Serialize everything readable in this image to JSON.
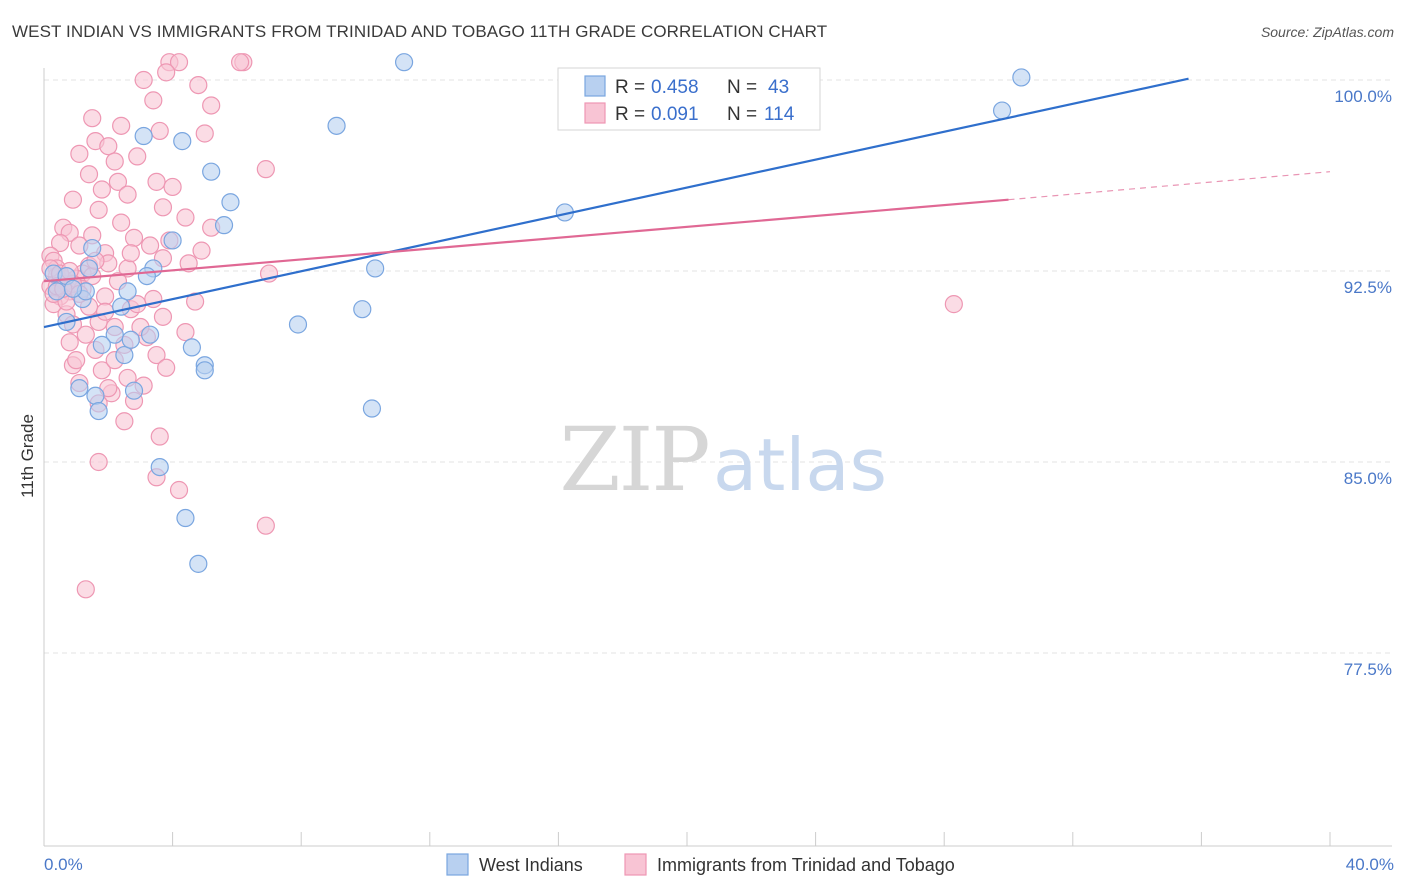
{
  "title": "WEST INDIAN VS IMMIGRANTS FROM TRINIDAD AND TOBAGO 11TH GRADE CORRELATION CHART",
  "source": "Source: ZipAtlas.com",
  "watermark": {
    "zip": "ZIP",
    "atlas": "atlas"
  },
  "colors": {
    "blue_fill": "#b8d0f0",
    "blue_stroke": "#7aa6e0",
    "blue_line": "#2f6fcc",
    "pink_fill": "#f8c4d4",
    "pink_stroke": "#ee97b3",
    "pink_line": "#e06894",
    "grid": "#e3e3e3",
    "label": "#4a78c8"
  },
  "legend": {
    "rows": [
      {
        "r_label": "R = ",
        "r_value": "0.458",
        "n_label": "N = ",
        "n_value": "43",
        "series": "blue"
      },
      {
        "r_label": "R = ",
        "r_value": "0.091",
        "n_label": "N = ",
        "n_value": "114",
        "series": "pink"
      }
    ]
  },
  "chart_data": {
    "type": "scatter",
    "title": "WEST INDIAN VS IMMIGRANTS FROM TRINIDAD AND TOBAGO 11TH GRADE CORRELATION CHART",
    "xlabel": "",
    "ylabel": "11th Grade",
    "xlim": [
      0,
      40
    ],
    "ylim": [
      70.0,
      101.5
    ],
    "x_tick_labels": {
      "left": "0.0%",
      "right": "40.0%"
    },
    "y_ticks": [
      {
        "value": 100.0,
        "label": "100.0%"
      },
      {
        "value": 92.5,
        "label": "92.5%"
      },
      {
        "value": 85.0,
        "label": "85.0%"
      },
      {
        "value": 77.5,
        "label": "77.5%"
      }
    ],
    "series": [
      {
        "name": "West Indians",
        "color": "blue",
        "trend": {
          "x0": 0,
          "y0": 90.3,
          "x1": 35.6,
          "y1": 100.05,
          "dashed_to": null
        },
        "points": [
          [
            11.2,
            100.7
          ],
          [
            30.4,
            100.1
          ],
          [
            29.8,
            98.8
          ],
          [
            9.1,
            98.2
          ],
          [
            3.1,
            97.8
          ],
          [
            4.3,
            97.6
          ],
          [
            5.2,
            96.4
          ],
          [
            5.8,
            95.2
          ],
          [
            16.2,
            94.8
          ],
          [
            5.6,
            94.3
          ],
          [
            4.0,
            93.7
          ],
          [
            1.5,
            93.4
          ],
          [
            1.4,
            92.6
          ],
          [
            3.4,
            92.6
          ],
          [
            0.3,
            92.4
          ],
          [
            0.7,
            92.3
          ],
          [
            10.3,
            92.6
          ],
          [
            2.6,
            91.7
          ],
          [
            1.2,
            91.4
          ],
          [
            0.4,
            91.7
          ],
          [
            2.4,
            91.1
          ],
          [
            9.9,
            91.0
          ],
          [
            7.9,
            90.4
          ],
          [
            0.7,
            90.5
          ],
          [
            2.2,
            90.0
          ],
          [
            3.3,
            90.0
          ],
          [
            1.8,
            89.6
          ],
          [
            4.6,
            89.5
          ],
          [
            2.5,
            89.2
          ],
          [
            5.0,
            88.8
          ],
          [
            5.0,
            88.6
          ],
          [
            1.1,
            87.9
          ],
          [
            2.8,
            87.8
          ],
          [
            1.6,
            87.6
          ],
          [
            10.2,
            87.1
          ],
          [
            1.7,
            87.0
          ],
          [
            3.6,
            84.8
          ],
          [
            4.4,
            82.8
          ],
          [
            4.8,
            81.0
          ],
          [
            1.3,
            91.7
          ],
          [
            0.9,
            91.8
          ],
          [
            2.7,
            89.8
          ],
          [
            3.2,
            92.3
          ]
        ]
      },
      {
        "name": "Immigrants from Trinidad and Tobago",
        "color": "pink",
        "trend": {
          "x0": 0,
          "y0": 92.1,
          "x1": 30.0,
          "y1": 95.3,
          "dashed_to": {
            "x": 40.0,
            "y": 96.4
          }
        },
        "points": [
          [
            3.9,
            100.7
          ],
          [
            4.2,
            100.7
          ],
          [
            6.2,
            100.7
          ],
          [
            3.8,
            100.3
          ],
          [
            3.1,
            100.0
          ],
          [
            4.8,
            99.8
          ],
          [
            3.4,
            99.2
          ],
          [
            5.2,
            99.0
          ],
          [
            1.5,
            98.5
          ],
          [
            2.4,
            98.2
          ],
          [
            3.6,
            98.0
          ],
          [
            5.0,
            97.9
          ],
          [
            1.6,
            97.6
          ],
          [
            2.0,
            97.4
          ],
          [
            1.1,
            97.1
          ],
          [
            2.9,
            97.0
          ],
          [
            2.2,
            96.8
          ],
          [
            6.9,
            96.5
          ],
          [
            1.4,
            96.3
          ],
          [
            3.5,
            96.0
          ],
          [
            2.3,
            96.0
          ],
          [
            4.0,
            95.8
          ],
          [
            1.8,
            95.7
          ],
          [
            2.6,
            95.5
          ],
          [
            0.9,
            95.3
          ],
          [
            3.7,
            95.0
          ],
          [
            1.7,
            94.9
          ],
          [
            4.4,
            94.6
          ],
          [
            0.6,
            94.2
          ],
          [
            5.2,
            94.2
          ],
          [
            0.8,
            94.0
          ],
          [
            1.5,
            93.9
          ],
          [
            2.8,
            93.8
          ],
          [
            0.5,
            93.6
          ],
          [
            1.1,
            93.5
          ],
          [
            3.3,
            93.5
          ],
          [
            4.9,
            93.3
          ],
          [
            0.2,
            93.1
          ],
          [
            1.9,
            93.2
          ],
          [
            3.7,
            93.0
          ],
          [
            0.3,
            92.9
          ],
          [
            1.4,
            92.7
          ],
          [
            2.6,
            92.6
          ],
          [
            7.0,
            92.4
          ],
          [
            0.4,
            92.6
          ],
          [
            1.2,
            92.4
          ],
          [
            0.6,
            92.2
          ],
          [
            2.3,
            92.1
          ],
          [
            0.2,
            91.9
          ],
          [
            1.0,
            91.9
          ],
          [
            0.8,
            91.7
          ],
          [
            1.9,
            91.5
          ],
          [
            0.5,
            91.5
          ],
          [
            3.4,
            91.4
          ],
          [
            4.7,
            91.3
          ],
          [
            0.3,
            91.2
          ],
          [
            1.4,
            91.1
          ],
          [
            2.7,
            91.0
          ],
          [
            0.7,
            90.8
          ],
          [
            3.7,
            90.7
          ],
          [
            1.7,
            90.5
          ],
          [
            0.9,
            90.4
          ],
          [
            2.2,
            90.3
          ],
          [
            4.4,
            90.1
          ],
          [
            1.3,
            90.0
          ],
          [
            3.2,
            89.9
          ],
          [
            0.8,
            89.7
          ],
          [
            2.5,
            89.6
          ],
          [
            1.6,
            89.4
          ],
          [
            3.5,
            89.2
          ],
          [
            0.9,
            88.8
          ],
          [
            1.8,
            88.6
          ],
          [
            2.6,
            88.3
          ],
          [
            1.1,
            88.1
          ],
          [
            3.1,
            88.0
          ],
          [
            2.1,
            87.7
          ],
          [
            2.8,
            87.4
          ],
          [
            1.7,
            87.3
          ],
          [
            2.5,
            86.6
          ],
          [
            3.6,
            86.0
          ],
          [
            1.7,
            85.0
          ],
          [
            3.5,
            84.4
          ],
          [
            4.2,
            83.9
          ],
          [
            6.9,
            82.5
          ],
          [
            1.3,
            80.0
          ],
          [
            28.3,
            91.2
          ],
          [
            6.1,
            100.7
          ],
          [
            0.4,
            92.3
          ],
          [
            0.2,
            92.6
          ],
          [
            0.6,
            92.0
          ],
          [
            1.0,
            92.2
          ],
          [
            0.3,
            91.6
          ],
          [
            0.7,
            91.3
          ],
          [
            1.2,
            91.8
          ],
          [
            0.5,
            92.4
          ],
          [
            0.9,
            92.0
          ],
          [
            1.5,
            92.3
          ],
          [
            0.4,
            91.9
          ],
          [
            0.8,
            92.5
          ],
          [
            1.1,
            91.6
          ],
          [
            2.0,
            92.8
          ],
          [
            2.9,
            91.2
          ],
          [
            3.9,
            93.7
          ],
          [
            4.5,
            92.8
          ],
          [
            2.4,
            94.4
          ],
          [
            1.9,
            90.9
          ],
          [
            3.0,
            90.3
          ],
          [
            2.2,
            89.0
          ],
          [
            1.0,
            89.0
          ],
          [
            3.8,
            88.7
          ],
          [
            2.0,
            87.9
          ],
          [
            0.6,
            91.8
          ],
          [
            1.6,
            92.9
          ],
          [
            2.7,
            93.2
          ]
        ]
      }
    ]
  },
  "bottom_legend": {
    "items": [
      {
        "label": "West Indians",
        "series": "blue"
      },
      {
        "label": "Immigrants from Trinidad and Tobago",
        "series": "pink"
      }
    ]
  }
}
